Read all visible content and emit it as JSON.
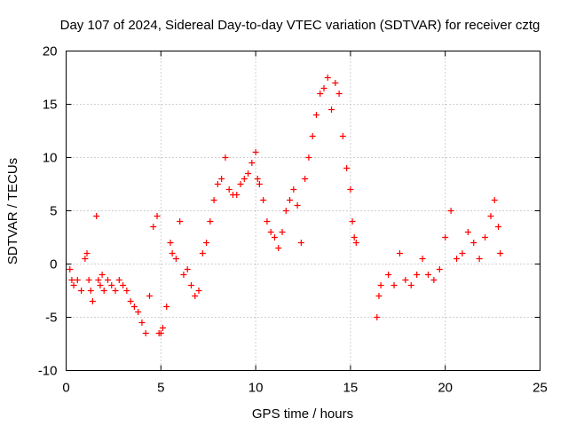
{
  "chart_data": {
    "type": "scatter",
    "title": "Day 107 of 2024, Sidereal Day-to-day VTEC variation (SDTVAR) for receiver cztg",
    "xlabel": "GPS time / hours",
    "ylabel": "SDTVAR / TECUs",
    "xlim": [
      0,
      25
    ],
    "ylim": [
      -10,
      20
    ],
    "xticks": [
      0,
      5,
      10,
      15,
      20,
      25
    ],
    "yticks": [
      -10,
      -5,
      0,
      5,
      10,
      15,
      20
    ],
    "xtick_labels": [
      "0",
      "5",
      "10",
      "15",
      "20",
      "25"
    ],
    "ytick_labels": [
      "-10",
      "-5",
      "0",
      "5",
      "10",
      "15",
      "20"
    ],
    "grid": true,
    "marker": "plus",
    "color": "#ff0000",
    "series": [
      {
        "name": "SDTVAR",
        "x": [
          0.2,
          0.3,
          0.4,
          0.6,
          0.8,
          1.0,
          1.1,
          1.2,
          1.3,
          1.4,
          1.6,
          1.7,
          1.8,
          1.9,
          2.0,
          2.2,
          2.4,
          2.6,
          2.8,
          3.0,
          3.2,
          3.4,
          3.6,
          3.8,
          4.0,
          4.2,
          4.4,
          4.6,
          4.8,
          4.9,
          5.0,
          5.1,
          5.3,
          5.5,
          5.6,
          5.8,
          6.0,
          6.2,
          6.4,
          6.6,
          6.8,
          7.0,
          7.2,
          7.4,
          7.6,
          7.8,
          8.0,
          8.2,
          8.4,
          8.6,
          8.8,
          9.0,
          9.2,
          9.4,
          9.6,
          9.8,
          10.0,
          10.1,
          10.2,
          10.4,
          10.6,
          10.8,
          11.0,
          11.2,
          11.4,
          11.6,
          11.8,
          12.0,
          12.2,
          12.4,
          12.6,
          12.8,
          13.0,
          13.2,
          13.4,
          13.6,
          13.8,
          14.0,
          14.2,
          14.4,
          14.6,
          14.8,
          15.0,
          15.1,
          15.2,
          15.3,
          16.4,
          16.5,
          16.6,
          17.0,
          17.3,
          17.6,
          17.9,
          18.2,
          18.5,
          18.8,
          19.1,
          19.4,
          19.7,
          20.0,
          20.3,
          20.6,
          20.9,
          21.2,
          21.5,
          21.8,
          22.1,
          22.4,
          22.6,
          22.8,
          22.9
        ],
        "y": [
          -0.5,
          -1.5,
          -2.0,
          -1.5,
          -2.5,
          0.5,
          1.0,
          -1.5,
          -2.5,
          -3.5,
          4.5,
          -1.5,
          -2.0,
          -1.0,
          -2.5,
          -1.5,
          -2.0,
          -2.5,
          -1.5,
          -2.0,
          -2.5,
          -3.5,
          -4.0,
          -4.5,
          -5.5,
          -6.5,
          -3.0,
          3.5,
          4.5,
          -6.5,
          -6.5,
          -6.0,
          -4.0,
          2.0,
          1.0,
          0.5,
          4.0,
          -1.0,
          -0.5,
          -2.0,
          -3.0,
          -2.5,
          1.0,
          2.0,
          4.0,
          6.0,
          7.5,
          8.0,
          10.0,
          7.0,
          6.5,
          6.5,
          7.5,
          8.0,
          8.5,
          9.5,
          10.5,
          8.0,
          7.5,
          6.0,
          4.0,
          3.0,
          2.5,
          1.5,
          3.0,
          5.0,
          6.0,
          7.0,
          5.5,
          2.0,
          8.0,
          10.0,
          12.0,
          14.0,
          16.0,
          16.5,
          17.5,
          14.5,
          17.0,
          16.0,
          12.0,
          9.0,
          7.0,
          4.0,
          2.5,
          2.0,
          -5.0,
          -3.0,
          -2.0,
          -1.0,
          -2.0,
          1.0,
          -1.5,
          -2.0,
          -1.0,
          0.5,
          -1.0,
          -1.5,
          -0.5,
          2.5,
          5.0,
          0.5,
          1.0,
          3.0,
          2.0,
          0.5,
          2.5,
          4.5,
          6.0,
          3.5,
          1.0
        ]
      }
    ]
  }
}
